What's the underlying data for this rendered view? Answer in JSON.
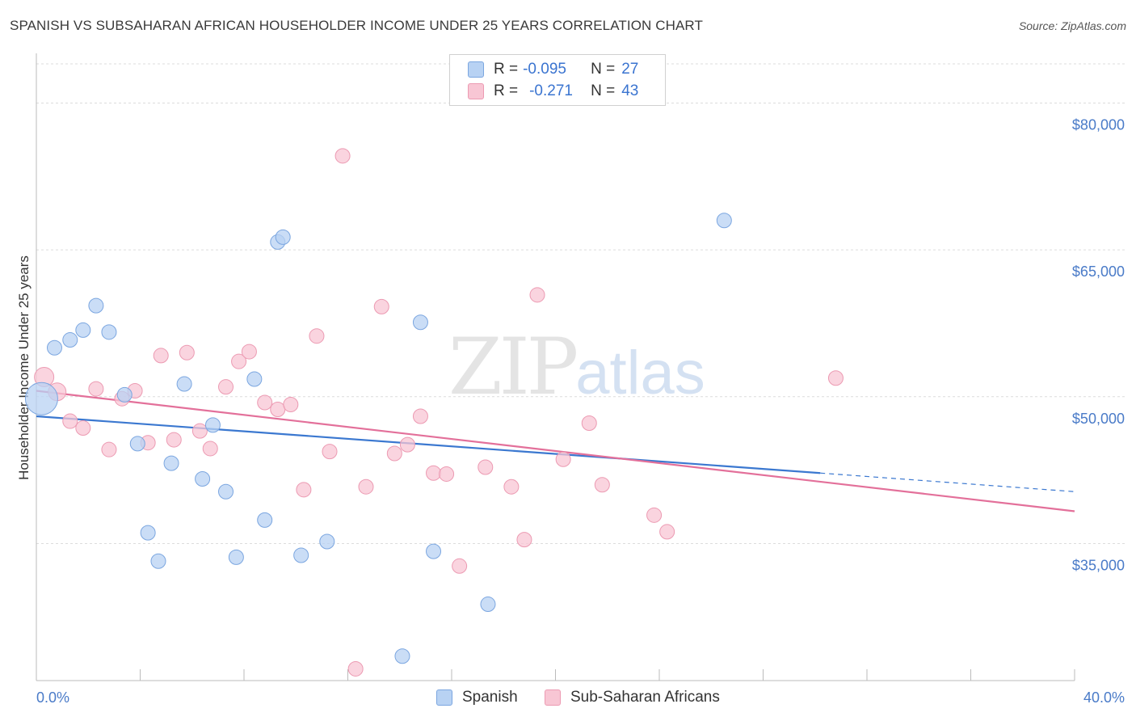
{
  "header": {
    "title": "SPANISH VS SUBSAHARAN AFRICAN HOUSEHOLDER INCOME UNDER 25 YEARS CORRELATION CHART",
    "source": "Source: ZipAtlas.com"
  },
  "watermark": {
    "zip": "ZIP",
    "atlas": "atlas"
  },
  "legend": {
    "rows": [
      {
        "r_label": "R =",
        "r_value": "-0.095",
        "n_label": "N =",
        "n_value": "27"
      },
      {
        "r_label": "R =",
        "r_value": "-0.271",
        "n_label": "N =",
        "n_value": "43"
      }
    ]
  },
  "bottom_legend": {
    "spanish": "Spanish",
    "african": "Sub-Saharan Africans"
  },
  "colors": {
    "spanish_fill": "#b8d2f3",
    "spanish_stroke": "#7ba6e0",
    "spanish_line": "#3b78d0",
    "african_fill": "#f8c6d4",
    "african_stroke": "#ec9ab2",
    "african_line": "#e3709a",
    "tick_text": "#4a7bc8",
    "grid": "#dcdcdc"
  },
  "chart_data": {
    "type": "scatter",
    "title": "SPANISH VS SUBSAHARAN AFRICAN HOUSEHOLDER INCOME UNDER 25 YEARS CORRELATION CHART",
    "xlabel": "",
    "ylabel": "Householder Income Under 25 years",
    "xlim": [
      0,
      40
    ],
    "ylim": [
      21000,
      84000
    ],
    "x_tick_labels": [
      "0.0%",
      "40.0%"
    ],
    "y_ticks": [
      35000,
      50000,
      65000,
      80000
    ],
    "y_tick_labels": [
      "$35,000",
      "$50,000",
      "$65,000",
      "$80,000"
    ],
    "grid": true,
    "legend_position": "top-center",
    "series": [
      {
        "name": "Spanish",
        "r": -0.095,
        "n": 27,
        "trend": {
          "x0": 0,
          "y0": 48000,
          "x1": 30.2,
          "y1": 42200,
          "dash_to_x": 40,
          "dash_to_y": 40300
        },
        "points": [
          [
            0.2,
            49800,
            20
          ],
          [
            0.7,
            55000,
            9
          ],
          [
            1.3,
            55800,
            9
          ],
          [
            1.8,
            56800,
            9
          ],
          [
            2.3,
            59300,
            9
          ],
          [
            2.8,
            56600,
            9
          ],
          [
            3.4,
            50200,
            9
          ],
          [
            3.9,
            45200,
            9
          ],
          [
            4.3,
            36100,
            9
          ],
          [
            4.7,
            33200,
            9
          ],
          [
            5.2,
            43200,
            9
          ],
          [
            5.7,
            51300,
            9
          ],
          [
            6.4,
            41600,
            9
          ],
          [
            6.8,
            47100,
            9
          ],
          [
            7.3,
            40300,
            9
          ],
          [
            7.7,
            33600,
            9
          ],
          [
            8.4,
            51800,
            9
          ],
          [
            8.8,
            37400,
            9
          ],
          [
            9.3,
            65800,
            9
          ],
          [
            9.5,
            66300,
            9
          ],
          [
            10.2,
            33800,
            9
          ],
          [
            11.2,
            35200,
            9
          ],
          [
            14.1,
            23500,
            9
          ],
          [
            14.8,
            57600,
            9
          ],
          [
            15.3,
            34200,
            9
          ],
          [
            17.4,
            28800,
            9
          ],
          [
            26.5,
            68000,
            9
          ]
        ]
      },
      {
        "name": "Sub-Saharan Africans",
        "r": -0.271,
        "n": 43,
        "trend": {
          "x0": 0,
          "y0": 50600,
          "x1": 40,
          "y1": 38300
        },
        "points": [
          [
            0.3,
            52000,
            12
          ],
          [
            0.8,
            50500,
            11
          ],
          [
            1.3,
            47500,
            9
          ],
          [
            1.8,
            46800,
            9
          ],
          [
            2.3,
            50800,
            9
          ],
          [
            2.8,
            44600,
            9
          ],
          [
            3.3,
            49800,
            9
          ],
          [
            3.8,
            50600,
            9
          ],
          [
            4.3,
            45300,
            9
          ],
          [
            4.8,
            54200,
            9
          ],
          [
            5.3,
            45600,
            9
          ],
          [
            5.8,
            54500,
            9
          ],
          [
            6.3,
            46500,
            9
          ],
          [
            6.7,
            44700,
            9
          ],
          [
            7.3,
            51000,
            9
          ],
          [
            7.8,
            53600,
            9
          ],
          [
            8.2,
            54600,
            9
          ],
          [
            8.8,
            49400,
            9
          ],
          [
            9.3,
            48700,
            9
          ],
          [
            9.8,
            49200,
            9
          ],
          [
            10.3,
            40500,
            9
          ],
          [
            10.8,
            56200,
            9
          ],
          [
            11.3,
            44400,
            9
          ],
          [
            11.8,
            74600,
            9
          ],
          [
            12.3,
            22200,
            9
          ],
          [
            12.7,
            40800,
            9
          ],
          [
            13.3,
            59200,
            9
          ],
          [
            13.8,
            44200,
            9
          ],
          [
            14.3,
            45100,
            9
          ],
          [
            14.8,
            48000,
            9
          ],
          [
            15.3,
            42200,
            9
          ],
          [
            15.8,
            42100,
            9
          ],
          [
            16.3,
            32700,
            9
          ],
          [
            17.3,
            42800,
            9
          ],
          [
            18.3,
            40800,
            9
          ],
          [
            18.8,
            35400,
            9
          ],
          [
            19.3,
            60400,
            9
          ],
          [
            20.3,
            43600,
            9
          ],
          [
            21.3,
            47300,
            9
          ],
          [
            21.8,
            41000,
            9
          ],
          [
            23.8,
            37900,
            9
          ],
          [
            24.3,
            36200,
            9
          ],
          [
            30.8,
            51900,
            9
          ]
        ]
      }
    ]
  }
}
